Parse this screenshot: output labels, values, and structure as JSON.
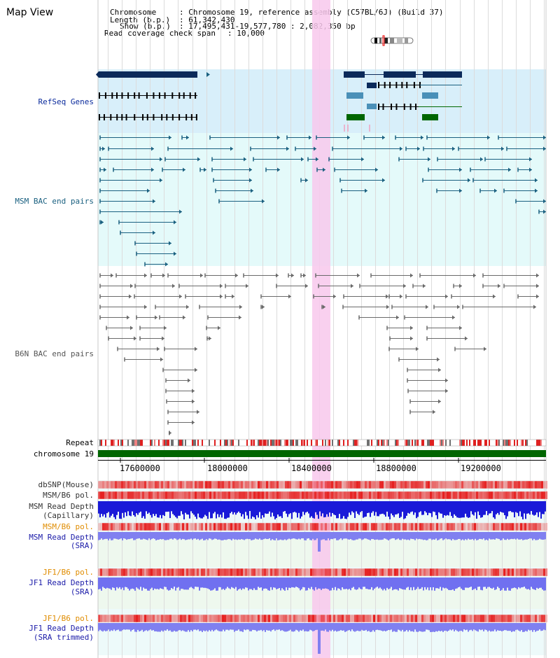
{
  "title": "Map View",
  "header": {
    "chromosome_label": "Chromosome",
    "chromosome_value": ": Chromosome 19, reference assembly (C57BL/6J) (Build 37)",
    "length_label": "Length (b.p.)",
    "length_value": ": 61,342,430",
    "show_label": "Show (b.p.)",
    "show_value": ": 17,495,431-19,577,780 : 2,082,350 bp",
    "span_label": "Read coverage check span",
    "span_value": ": 10,000"
  },
  "tracks": {
    "refseq": "RefSeq Genes",
    "msm_bac": "MSM BAC end pairs",
    "b6n_bac": "B6N BAC end pairs",
    "repeat": "Repeat",
    "chromosome": "chromosome 19",
    "dbsnp": "dbSNP(Mouse)",
    "msm_b6_pol_1": "MSM/B6 pol.",
    "msm_read_depth_cap_1": "MSM Read Depth",
    "msm_read_depth_cap_2": "(Capillary)",
    "msm_b6_pol_2": "MSM/B6 pol.",
    "msm_read_depth_sra_1": "MSM Read Depth",
    "msm_read_depth_sra_2": "(SRA)",
    "jf1_b6_pol_1": "JF1/B6 pol.",
    "jf1_read_depth_sra_1": "JF1 Read Depth",
    "jf1_read_depth_sra_2": "(SRA)",
    "jf1_b6_pol_2": "JF1/B6 pol.",
    "jf1_read_depth_trim_1": "JF1 Read Depth",
    "jf1_read_depth_trim_2": "(SRA trimmed)"
  },
  "axis": {
    "ticks": [
      "17600000",
      "18000000",
      "18400000",
      "18800000",
      "19200000"
    ]
  },
  "colors": {
    "refseq_label": "#0a2a9c",
    "msm_label": "#1a6080",
    "b6n_label": "#555555",
    "orange_label": "#e08c00",
    "blue_label": "#1a1aa8",
    "highlight": "#f8c8ec",
    "chrom_bar": "#006600",
    "refseq_bg": "#d8effa",
    "msm_bg": "#e4fafa"
  }
}
